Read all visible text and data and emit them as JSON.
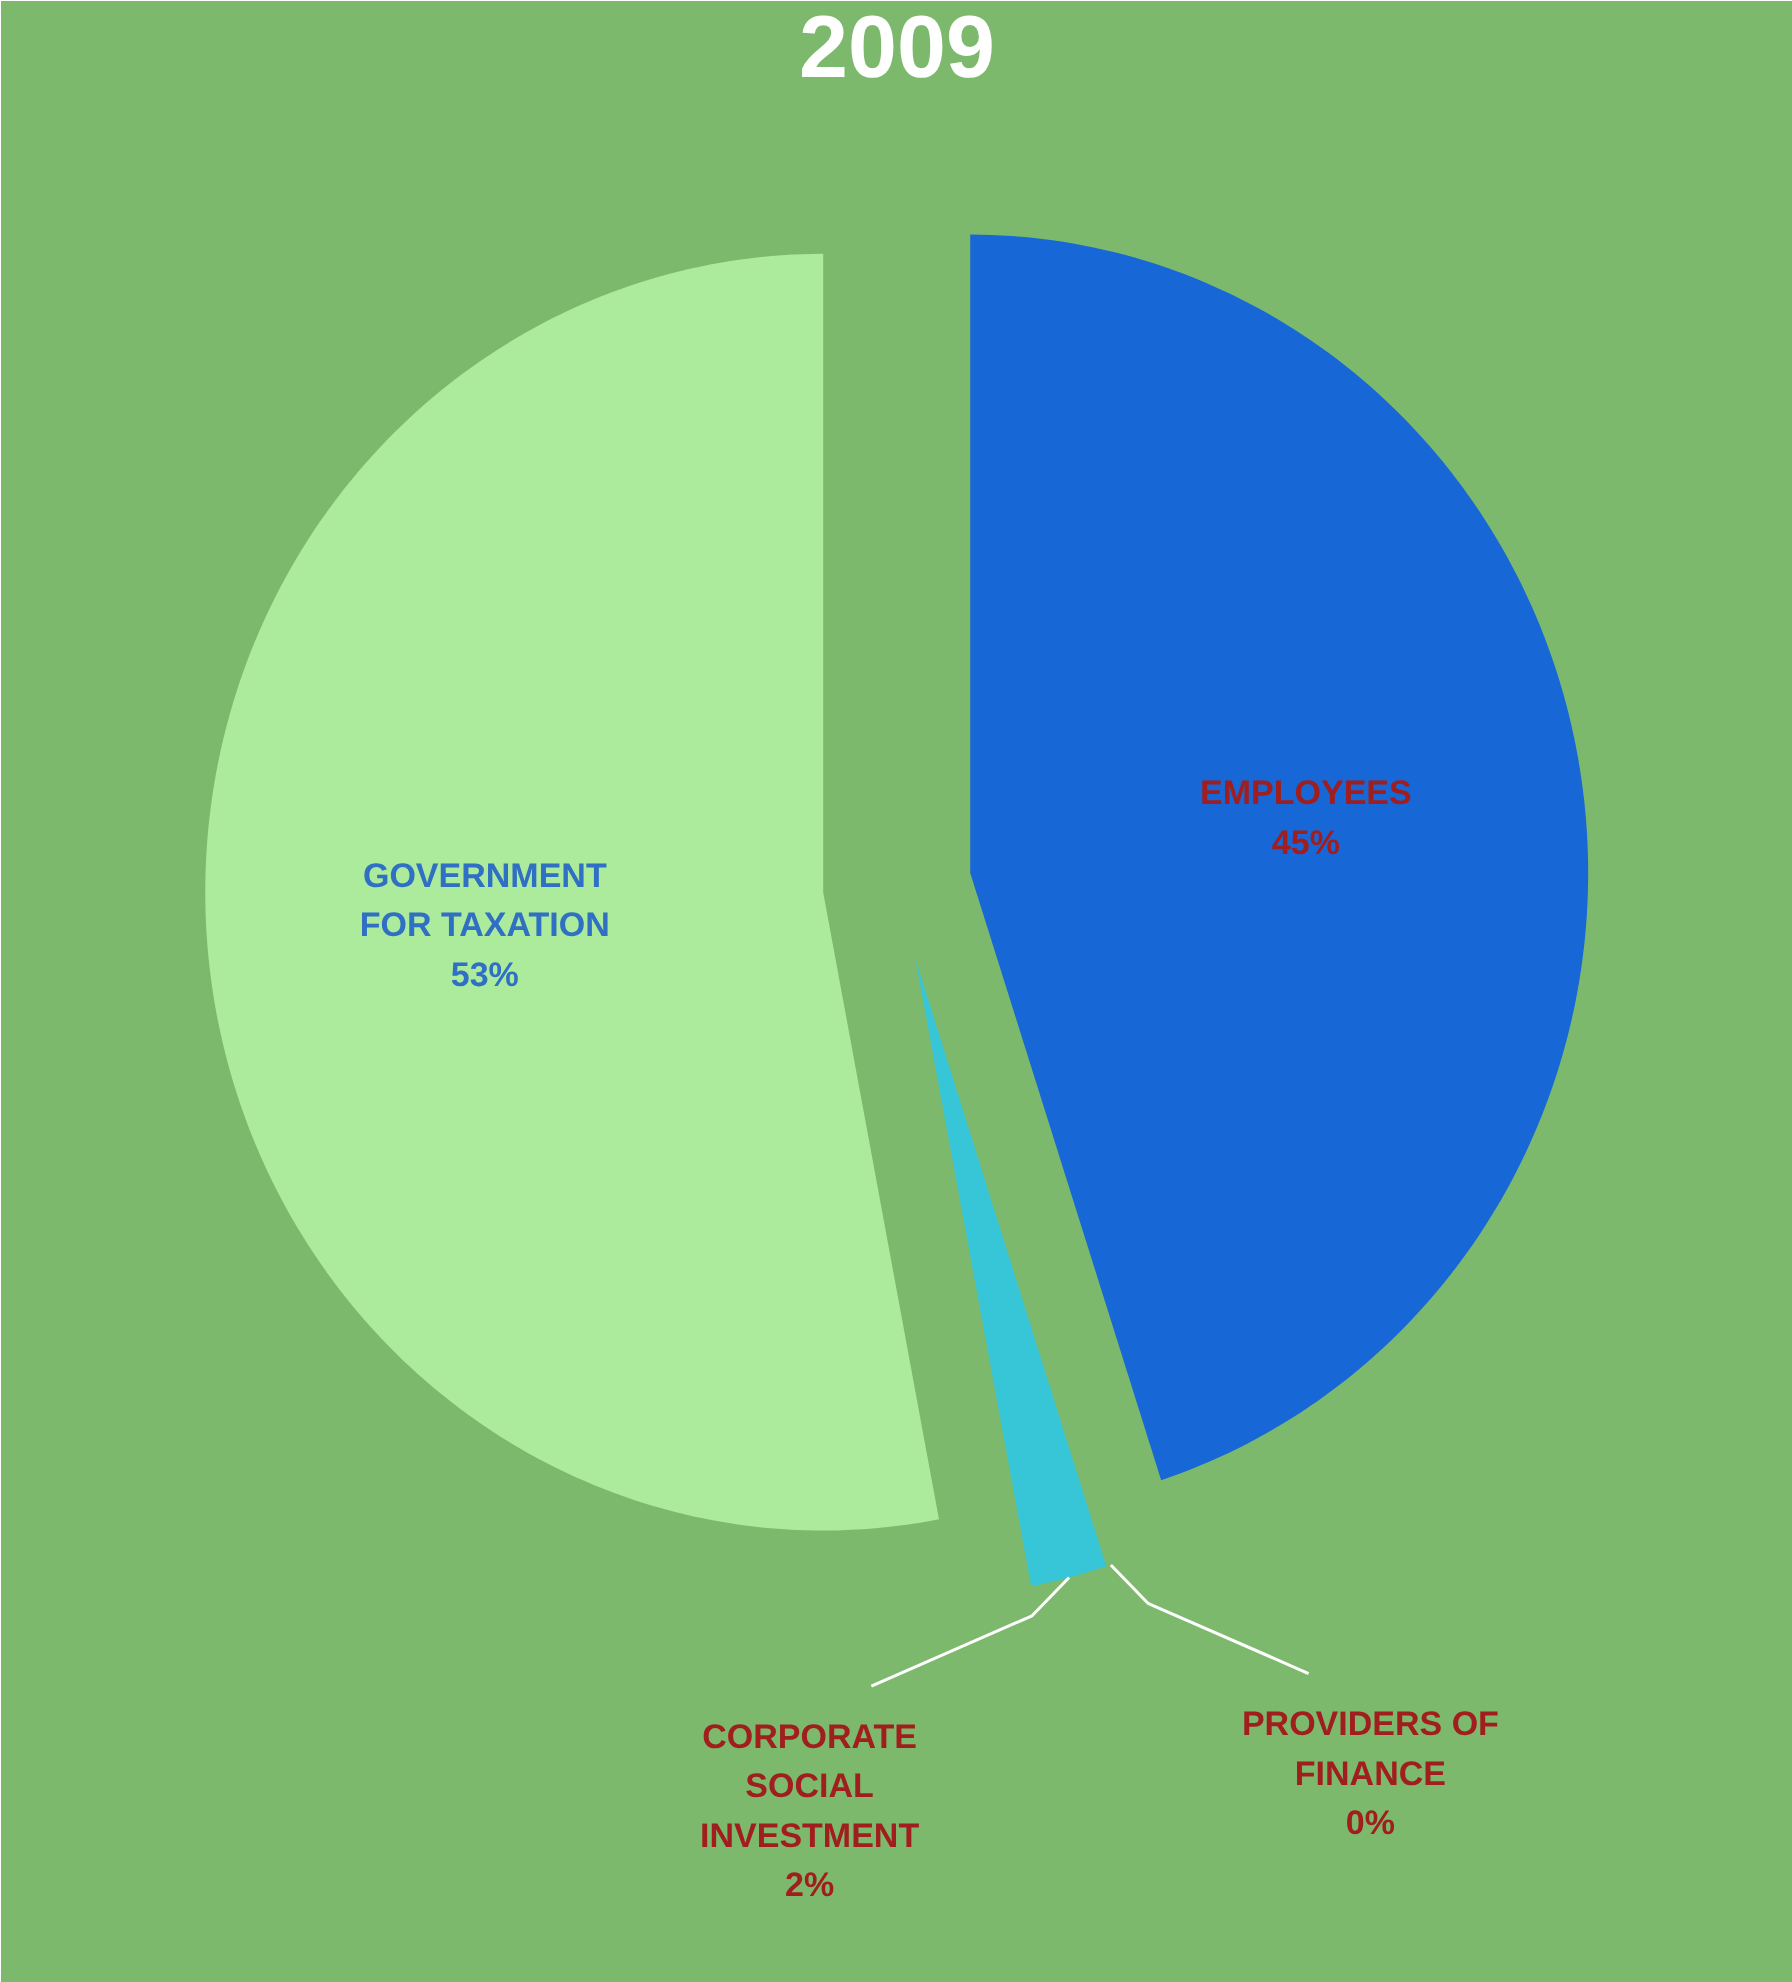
{
  "chart_data": {
    "type": "pie",
    "title": "2009",
    "categories": [
      "EMPLOYEES",
      "PROVIDERS OF FINANCE",
      "CORPORATE SOCIAL INVESTMENT",
      "GOVERNMENT FOR TAXATION"
    ],
    "values": [
      45,
      0,
      2,
      53
    ],
    "value_labels": [
      "45%",
      "0%",
      "2%",
      "53%"
    ],
    "colors": [
      "#1767d6",
      "#1b4f9e",
      "#36c6d8",
      "#acea9c"
    ],
    "legend": false
  }
}
